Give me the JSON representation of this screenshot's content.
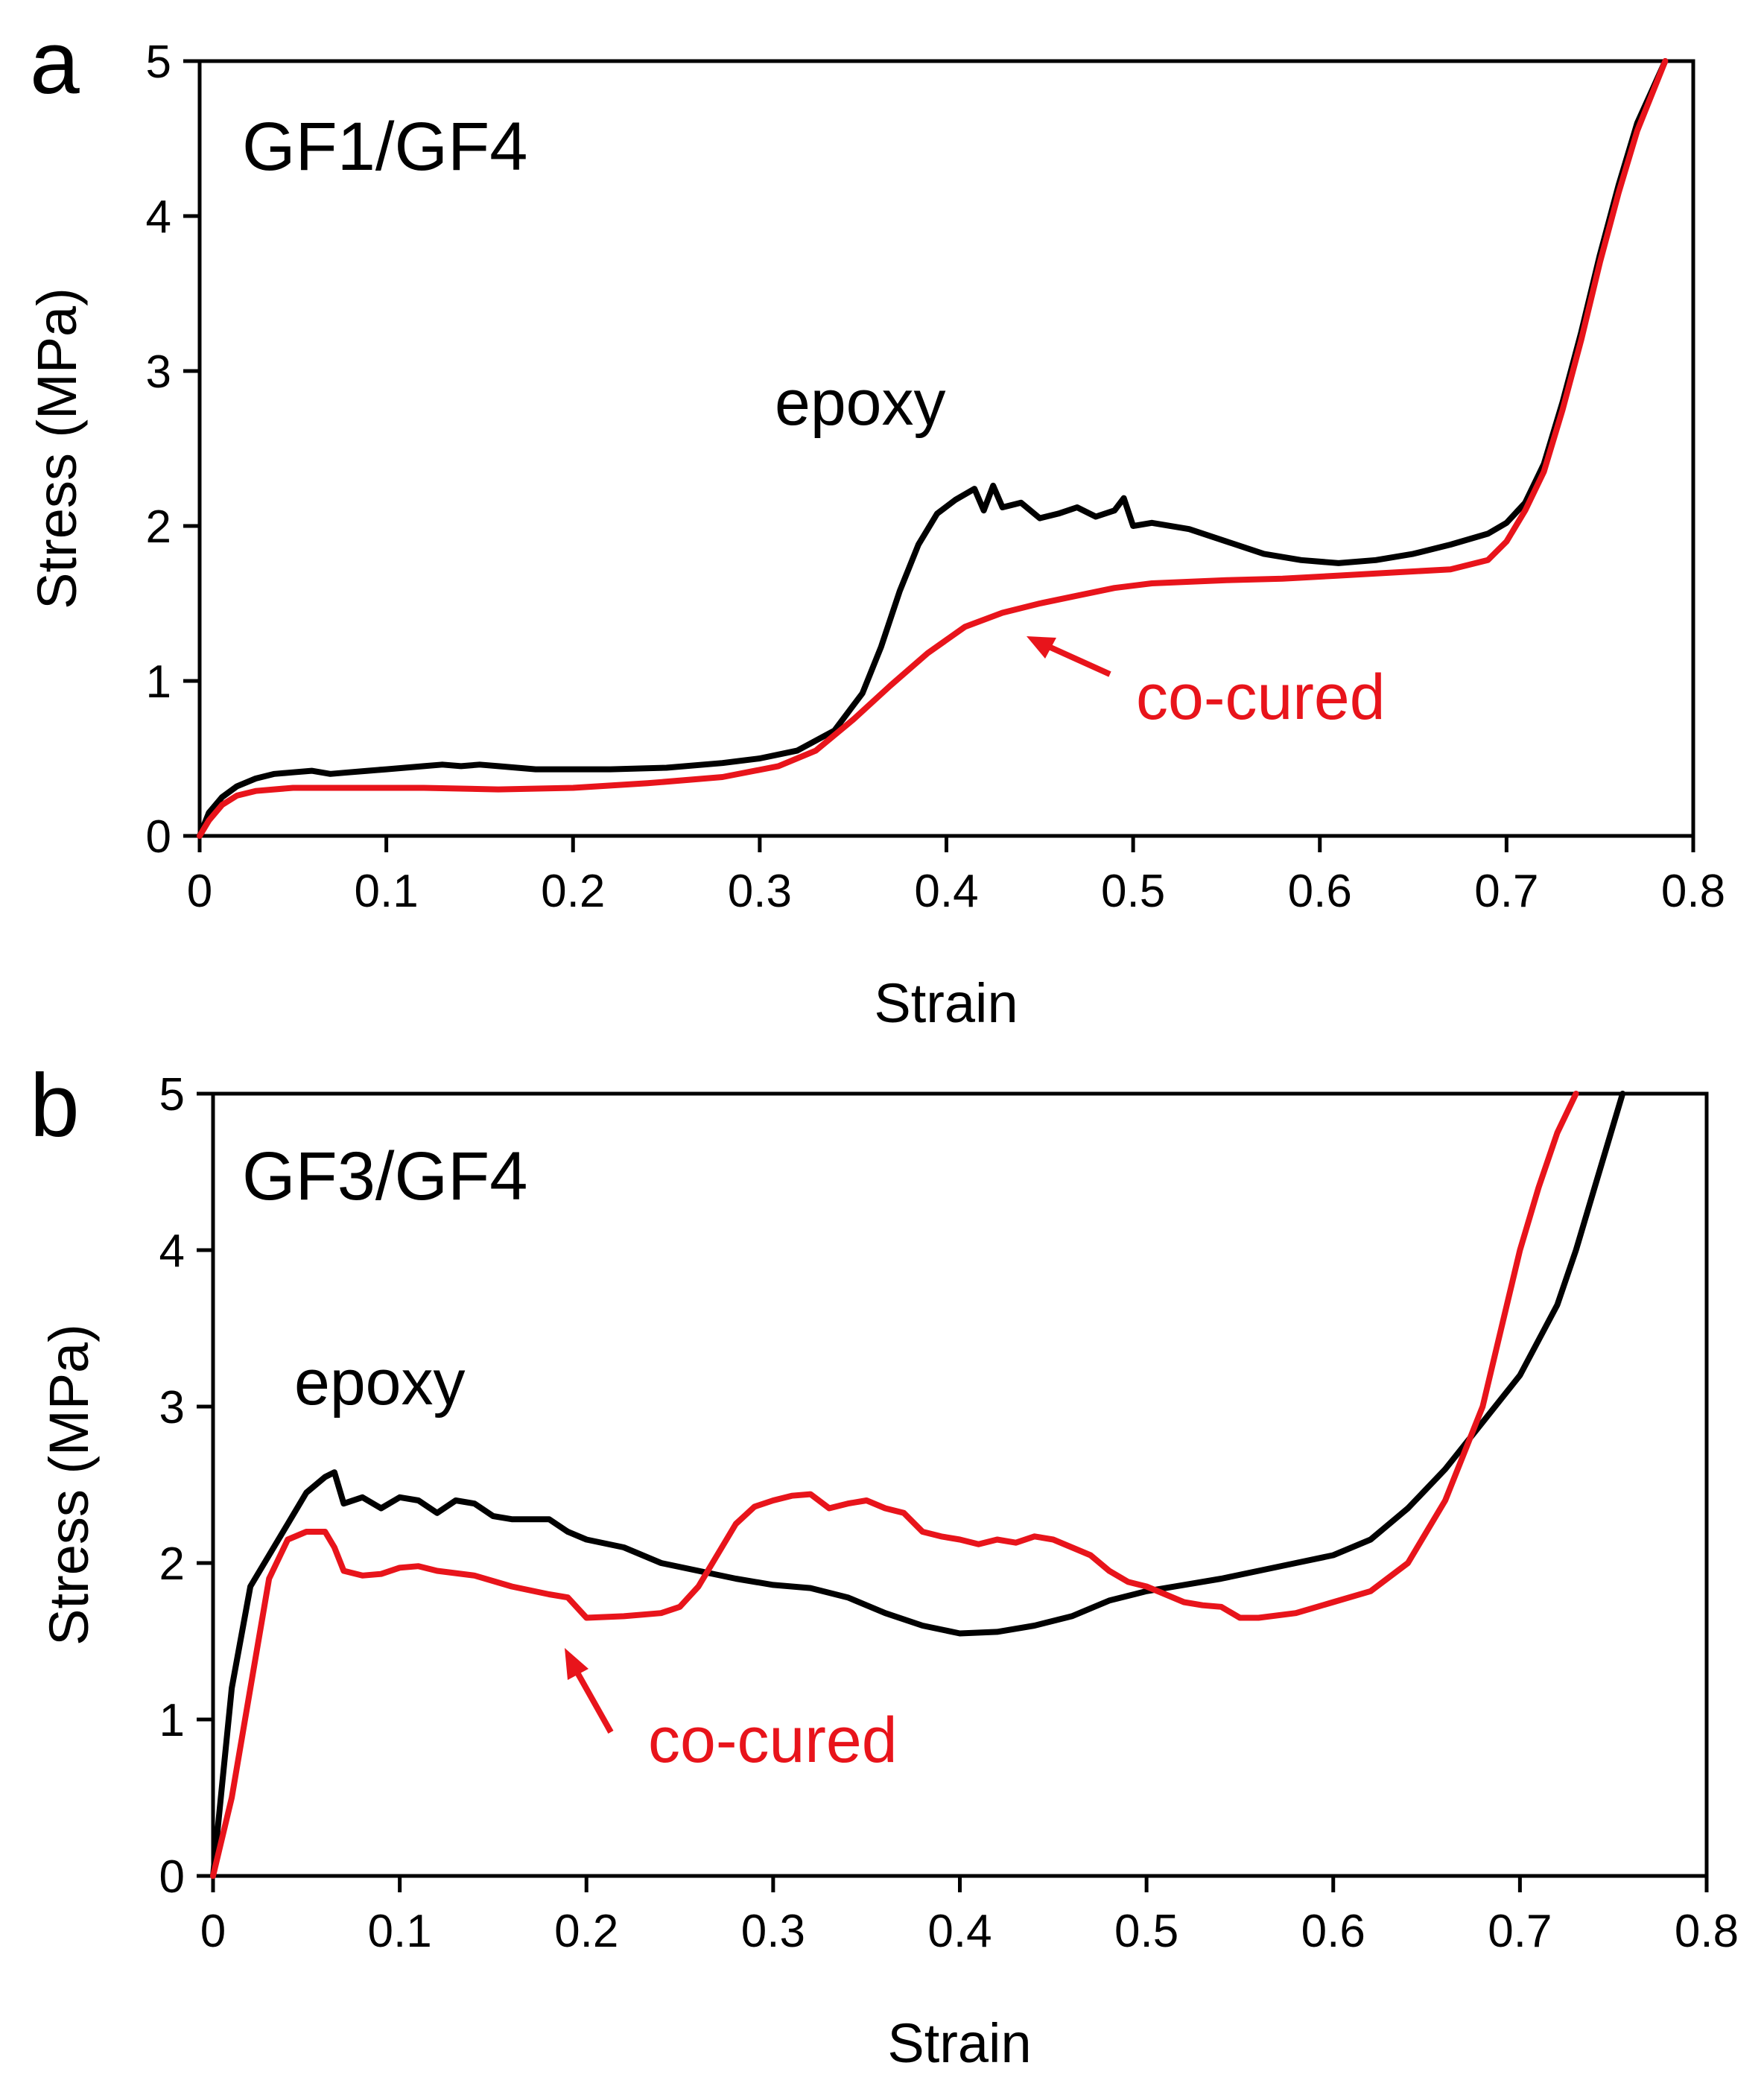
{
  "chart_data": [
    {
      "type": "line",
      "panel_label": "a",
      "title": "GF1/GF4",
      "xlabel": "Strain",
      "ylabel": "Stress (MPa)",
      "xlim": [
        0,
        0.8
      ],
      "ylim": [
        0,
        5
      ],
      "xticks": [
        "0",
        "0.1",
        "0.2",
        "0.3",
        "0.4",
        "0.5",
        "0.6",
        "0.7",
        "0.8"
      ],
      "yticks": [
        "0",
        "1",
        "2",
        "3",
        "4",
        "5"
      ],
      "grid": false,
      "colors": {
        "epoxy": "#000000",
        "co-cured": "#e8141b"
      },
      "annotations": {
        "epoxy": "epoxy",
        "co_cured": "co-cured"
      },
      "series": [
        {
          "name": "epoxy",
          "color": "#000000",
          "points": [
            [
              0,
              0
            ],
            [
              0.005,
              0.15
            ],
            [
              0.012,
              0.25
            ],
            [
              0.02,
              0.32
            ],
            [
              0.03,
              0.37
            ],
            [
              0.04,
              0.4
            ],
            [
              0.05,
              0.41
            ],
            [
              0.06,
              0.42
            ],
            [
              0.07,
              0.4
            ],
            [
              0.08,
              0.41
            ],
            [
              0.09,
              0.42
            ],
            [
              0.1,
              0.43
            ],
            [
              0.11,
              0.44
            ],
            [
              0.12,
              0.45
            ],
            [
              0.13,
              0.46
            ],
            [
              0.14,
              0.45
            ],
            [
              0.15,
              0.46
            ],
            [
              0.16,
              0.45
            ],
            [
              0.18,
              0.43
            ],
            [
              0.2,
              0.43
            ],
            [
              0.22,
              0.43
            ],
            [
              0.25,
              0.44
            ],
            [
              0.28,
              0.47
            ],
            [
              0.3,
              0.5
            ],
            [
              0.32,
              0.55
            ],
            [
              0.34,
              0.68
            ],
            [
              0.355,
              0.92
            ],
            [
              0.365,
              1.22
            ],
            [
              0.375,
              1.58
            ],
            [
              0.385,
              1.88
            ],
            [
              0.395,
              2.08
            ],
            [
              0.405,
              2.17
            ],
            [
              0.415,
              2.24
            ],
            [
              0.42,
              2.1
            ],
            [
              0.425,
              2.26
            ],
            [
              0.43,
              2.12
            ],
            [
              0.44,
              2.15
            ],
            [
              0.45,
              2.05
            ],
            [
              0.46,
              2.08
            ],
            [
              0.47,
              2.12
            ],
            [
              0.48,
              2.06
            ],
            [
              0.49,
              2.1
            ],
            [
              0.495,
              2.18
            ],
            [
              0.5,
              2.0
            ],
            [
              0.51,
              2.02
            ],
            [
              0.53,
              1.98
            ],
            [
              0.55,
              1.9
            ],
            [
              0.57,
              1.82
            ],
            [
              0.59,
              1.78
            ],
            [
              0.61,
              1.76
            ],
            [
              0.63,
              1.78
            ],
            [
              0.65,
              1.82
            ],
            [
              0.67,
              1.88
            ],
            [
              0.69,
              1.95
            ],
            [
              0.7,
              2.02
            ],
            [
              0.71,
              2.15
            ],
            [
              0.72,
              2.4
            ],
            [
              0.73,
              2.8
            ],
            [
              0.74,
              3.25
            ],
            [
              0.75,
              3.75
            ],
            [
              0.76,
              4.2
            ],
            [
              0.77,
              4.6
            ],
            [
              0.785,
              5.0
            ]
          ]
        },
        {
          "name": "co-cured",
          "color": "#e8141b",
          "points": [
            [
              0,
              0
            ],
            [
              0.005,
              0.1
            ],
            [
              0.012,
              0.2
            ],
            [
              0.02,
              0.26
            ],
            [
              0.03,
              0.29
            ],
            [
              0.05,
              0.31
            ],
            [
              0.08,
              0.31
            ],
            [
              0.12,
              0.31
            ],
            [
              0.16,
              0.3
            ],
            [
              0.2,
              0.31
            ],
            [
              0.24,
              0.34
            ],
            [
              0.28,
              0.38
            ],
            [
              0.31,
              0.45
            ],
            [
              0.33,
              0.55
            ],
            [
              0.35,
              0.75
            ],
            [
              0.37,
              0.97
            ],
            [
              0.39,
              1.18
            ],
            [
              0.41,
              1.35
            ],
            [
              0.43,
              1.44
            ],
            [
              0.45,
              1.5
            ],
            [
              0.47,
              1.55
            ],
            [
              0.49,
              1.6
            ],
            [
              0.51,
              1.63
            ],
            [
              0.55,
              1.65
            ],
            [
              0.58,
              1.66
            ],
            [
              0.61,
              1.68
            ],
            [
              0.64,
              1.7
            ],
            [
              0.67,
              1.72
            ],
            [
              0.69,
              1.78
            ],
            [
              0.7,
              1.9
            ],
            [
              0.71,
              2.1
            ],
            [
              0.72,
              2.35
            ],
            [
              0.73,
              2.75
            ],
            [
              0.74,
              3.2
            ],
            [
              0.75,
              3.7
            ],
            [
              0.76,
              4.15
            ],
            [
              0.77,
              4.55
            ],
            [
              0.785,
              5.0
            ]
          ]
        }
      ]
    },
    {
      "type": "line",
      "panel_label": "b",
      "title": "GF3/GF4",
      "xlabel": "Strain",
      "ylabel": "Stress (MPa)",
      "xlim": [
        0,
        0.8
      ],
      "ylim": [
        0,
        5
      ],
      "xticks": [
        "0",
        "0.1",
        "0.2",
        "0.3",
        "0.4",
        "0.5",
        "0.6",
        "0.7",
        "0.8"
      ],
      "yticks": [
        "0",
        "1",
        "2",
        "3",
        "4",
        "5"
      ],
      "grid": false,
      "colors": {
        "epoxy": "#000000",
        "co-cured": "#e8141b"
      },
      "annotations": {
        "epoxy": "epoxy",
        "co_cured": "co-cured"
      },
      "series": [
        {
          "name": "epoxy",
          "color": "#000000",
          "points": [
            [
              0,
              0
            ],
            [
              0.005,
              0.6
            ],
            [
              0.01,
              1.2
            ],
            [
              0.02,
              1.85
            ],
            [
              0.03,
              2.05
            ],
            [
              0.04,
              2.25
            ],
            [
              0.05,
              2.45
            ],
            [
              0.06,
              2.55
            ],
            [
              0.065,
              2.58
            ],
            [
              0.07,
              2.38
            ],
            [
              0.08,
              2.42
            ],
            [
              0.09,
              2.35
            ],
            [
              0.1,
              2.42
            ],
            [
              0.11,
              2.4
            ],
            [
              0.12,
              2.32
            ],
            [
              0.13,
              2.4
            ],
            [
              0.14,
              2.38
            ],
            [
              0.15,
              2.3
            ],
            [
              0.16,
              2.28
            ],
            [
              0.18,
              2.28
            ],
            [
              0.19,
              2.2
            ],
            [
              0.2,
              2.15
            ],
            [
              0.22,
              2.1
            ],
            [
              0.24,
              2.0
            ],
            [
              0.26,
              1.95
            ],
            [
              0.28,
              1.9
            ],
            [
              0.3,
              1.86
            ],
            [
              0.32,
              1.84
            ],
            [
              0.34,
              1.78
            ],
            [
              0.36,
              1.68
            ],
            [
              0.38,
              1.6
            ],
            [
              0.4,
              1.55
            ],
            [
              0.42,
              1.56
            ],
            [
              0.44,
              1.6
            ],
            [
              0.46,
              1.66
            ],
            [
              0.48,
              1.76
            ],
            [
              0.5,
              1.82
            ],
            [
              0.52,
              1.86
            ],
            [
              0.54,
              1.9
            ],
            [
              0.56,
              1.95
            ],
            [
              0.58,
              2.0
            ],
            [
              0.6,
              2.05
            ],
            [
              0.62,
              2.15
            ],
            [
              0.64,
              2.35
            ],
            [
              0.66,
              2.6
            ],
            [
              0.68,
              2.9
            ],
            [
              0.7,
              3.2
            ],
            [
              0.72,
              3.65
            ],
            [
              0.73,
              4.0
            ],
            [
              0.74,
              4.4
            ],
            [
              0.755,
              5.0
            ]
          ]
        },
        {
          "name": "co-cured",
          "color": "#e8141b",
          "points": [
            [
              0,
              0
            ],
            [
              0.01,
              0.5
            ],
            [
              0.02,
              1.2
            ],
            [
              0.03,
              1.9
            ],
            [
              0.04,
              2.15
            ],
            [
              0.05,
              2.2
            ],
            [
              0.06,
              2.2
            ],
            [
              0.065,
              2.1
            ],
            [
              0.07,
              1.95
            ],
            [
              0.08,
              1.92
            ],
            [
              0.09,
              1.93
            ],
            [
              0.1,
              1.97
            ],
            [
              0.11,
              1.98
            ],
            [
              0.12,
              1.95
            ],
            [
              0.14,
              1.92
            ],
            [
              0.16,
              1.85
            ],
            [
              0.18,
              1.8
            ],
            [
              0.19,
              1.78
            ],
            [
              0.2,
              1.65
            ],
            [
              0.22,
              1.66
            ],
            [
              0.24,
              1.68
            ],
            [
              0.25,
              1.72
            ],
            [
              0.26,
              1.85
            ],
            [
              0.27,
              2.05
            ],
            [
              0.28,
              2.25
            ],
            [
              0.29,
              2.36
            ],
            [
              0.3,
              2.4
            ],
            [
              0.31,
              2.43
            ],
            [
              0.32,
              2.44
            ],
            [
              0.33,
              2.35
            ],
            [
              0.34,
              2.38
            ],
            [
              0.35,
              2.4
            ],
            [
              0.36,
              2.35
            ],
            [
              0.37,
              2.32
            ],
            [
              0.38,
              2.2
            ],
            [
              0.39,
              2.17
            ],
            [
              0.4,
              2.15
            ],
            [
              0.41,
              2.12
            ],
            [
              0.42,
              2.15
            ],
            [
              0.43,
              2.13
            ],
            [
              0.44,
              2.17
            ],
            [
              0.45,
              2.15
            ],
            [
              0.46,
              2.1
            ],
            [
              0.47,
              2.05
            ],
            [
              0.48,
              1.95
            ],
            [
              0.49,
              1.88
            ],
            [
              0.5,
              1.85
            ],
            [
              0.51,
              1.8
            ],
            [
              0.52,
              1.75
            ],
            [
              0.53,
              1.73
            ],
            [
              0.54,
              1.72
            ],
            [
              0.55,
              1.65
            ],
            [
              0.56,
              1.65
            ],
            [
              0.58,
              1.68
            ],
            [
              0.6,
              1.75
            ],
            [
              0.62,
              1.82
            ],
            [
              0.64,
              2.0
            ],
            [
              0.66,
              2.4
            ],
            [
              0.68,
              3.0
            ],
            [
              0.69,
              3.5
            ],
            [
              0.7,
              4.0
            ],
            [
              0.71,
              4.4
            ],
            [
              0.72,
              4.75
            ],
            [
              0.73,
              5.0
            ]
          ]
        }
      ]
    }
  ]
}
